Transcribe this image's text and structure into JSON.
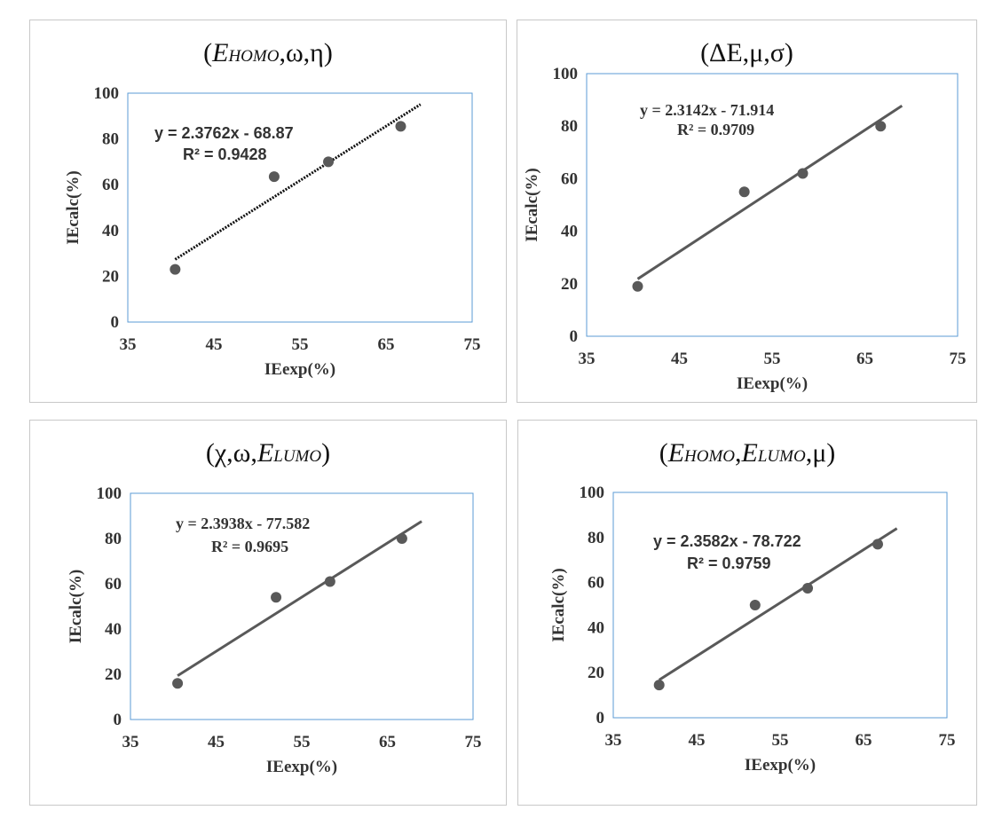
{
  "chart_data": [
    {
      "type": "scatter",
      "title": "(E_HOMO,ω,η)",
      "xlabel": "IEexp(%)",
      "ylabel": "IEcalc(%)",
      "xlim": [
        35,
        75
      ],
      "ylim": [
        0,
        100
      ],
      "xticks": [
        "35",
        "45",
        "55",
        "65",
        "75"
      ],
      "yticks": [
        "0",
        "20",
        "40",
        "60",
        "80",
        "100"
      ],
      "points": [
        {
          "x": 40.5,
          "y": 23
        },
        {
          "x": 52,
          "y": 63.5
        },
        {
          "x": 58.3,
          "y": 70
        },
        {
          "x": 66.7,
          "y": 85.5
        }
      ],
      "trendline": {
        "slope": 2.3762,
        "intercept": -68.87,
        "x_start": 40.5,
        "x_end": 69,
        "style": "dotted"
      },
      "equation": "y = 2.3762x - 68.87",
      "r2": "R² = 0.9428"
    },
    {
      "type": "scatter",
      "title": "(ΔE,μ,σ)",
      "xlabel": "IEexp(%)",
      "ylabel": "IEcalc(%)",
      "xlim": [
        35,
        75
      ],
      "ylim": [
        0,
        100
      ],
      "xticks": [
        "35",
        "45",
        "55",
        "65",
        "75"
      ],
      "yticks": [
        "0",
        "20",
        "40",
        "60",
        "80",
        "100"
      ],
      "points": [
        {
          "x": 40.5,
          "y": 19
        },
        {
          "x": 52,
          "y": 55
        },
        {
          "x": 58.3,
          "y": 62
        },
        {
          "x": 66.7,
          "y": 80
        }
      ],
      "trendline": {
        "slope": 2.3142,
        "intercept": -71.914,
        "x_start": 40.5,
        "x_end": 69,
        "style": "solid"
      },
      "equation": "y = 2.3142x - 71.914",
      "r2": "R² = 0.9709"
    },
    {
      "type": "scatter",
      "title": "(χ,ω,E_LUMO)",
      "xlabel": "IEexp(%)",
      "ylabel": "IEcalc(%)",
      "xlim": [
        35,
        75
      ],
      "ylim": [
        0,
        100
      ],
      "xticks": [
        "35",
        "45",
        "55",
        "65",
        "75"
      ],
      "yticks": [
        "0",
        "20",
        "40",
        "60",
        "80",
        "100"
      ],
      "points": [
        {
          "x": 40.5,
          "y": 16
        },
        {
          "x": 52,
          "y": 54
        },
        {
          "x": 58.3,
          "y": 61
        },
        {
          "x": 66.7,
          "y": 80
        }
      ],
      "trendline": {
        "slope": 2.3938,
        "intercept": -77.582,
        "x_start": 40.5,
        "x_end": 69,
        "style": "solid"
      },
      "equation": "y = 2.3938x - 77.582",
      "r2": "R² = 0.9695"
    },
    {
      "type": "scatter",
      "title": "(E_HOMO,E_LUMO,μ)",
      "xlabel": "IEexp(%)",
      "ylabel": "IEcalc(%)",
      "xlim": [
        35,
        75
      ],
      "ylim": [
        0,
        100
      ],
      "xticks": [
        "35",
        "45",
        "55",
        "65",
        "75"
      ],
      "yticks": [
        "0",
        "20",
        "40",
        "60",
        "80",
        "100"
      ],
      "points": [
        {
          "x": 40.5,
          "y": 14.5
        },
        {
          "x": 52,
          "y": 50
        },
        {
          "x": 58.3,
          "y": 57.5
        },
        {
          "x": 66.7,
          "y": 77
        }
      ],
      "trendline": {
        "slope": 2.3582,
        "intercept": -78.722,
        "x_start": 40.5,
        "x_end": 69,
        "style": "solid"
      },
      "equation": "y = 2.3582x - 78.722",
      "r2": "R² = 0.9759"
    }
  ],
  "titles": [
    {
      "pre": "(",
      "var": "E",
      "sub": "HOMO",
      "post": ",ω,η)"
    },
    {
      "pre": "(ΔE,μ,σ)",
      "var": "",
      "sub": "",
      "post": ""
    },
    {
      "pre": "(χ,ω,",
      "var": "E",
      "sub": "LUMO",
      "post": ")"
    },
    {
      "pre": "(",
      "var": "E",
      "sub": "HOMO",
      "post": ",",
      "var2": "E",
      "sub2": "LUMO",
      "post2": ",μ)"
    }
  ],
  "colors": {
    "border": "#c8c8c8",
    "plot_border": "#5b9bd5",
    "point": "#595959",
    "line": "#595959",
    "text": "#333333"
  }
}
